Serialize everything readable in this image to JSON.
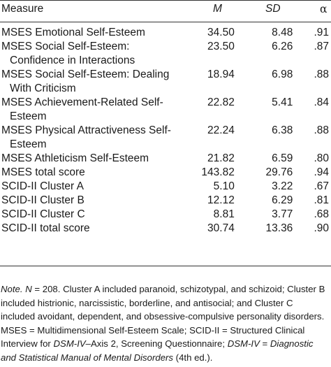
{
  "header": {
    "measure": "Measure",
    "m": "M",
    "sd": "SD",
    "alpha": "α"
  },
  "rows": [
    {
      "measure_line1": "MSES Emotional Self-Esteem",
      "measure_line2": "",
      "m": "34.50",
      "sd": "8.48",
      "alpha": ".91"
    },
    {
      "measure_line1": "MSES Social Self-Esteem:",
      "measure_line2": "Confidence in Interactions",
      "m": "23.50",
      "sd": "6.26",
      "alpha": ".87"
    },
    {
      "measure_line1": "MSES Social Self-Esteem: Dealing",
      "measure_line2": "With Criticism",
      "m": "18.94",
      "sd": "6.98",
      "alpha": ".88"
    },
    {
      "measure_line1": "MSES Achievement-Related Self-",
      "measure_line2": "Esteem",
      "m": "22.82",
      "sd": "5.41",
      "alpha": ".84"
    },
    {
      "measure_line1": "MSES Physical Attractiveness Self-",
      "measure_line2": "Esteem",
      "m": "22.24",
      "sd": "6.38",
      "alpha": ".88"
    },
    {
      "measure_line1": "MSES Athleticism Self-Esteem",
      "measure_line2": "",
      "m": "21.82",
      "sd": "6.59",
      "alpha": ".80"
    },
    {
      "measure_line1": "MSES total score",
      "measure_line2": "",
      "m": "143.82",
      "sd": "29.76",
      "alpha": ".94"
    },
    {
      "measure_line1": "SCID-II Cluster A",
      "measure_line2": "",
      "m": "5.10",
      "sd": "3.22",
      "alpha": ".67"
    },
    {
      "measure_line1": "SCID-II Cluster B",
      "measure_line2": "",
      "m": "12.12",
      "sd": "6.29",
      "alpha": ".81"
    },
    {
      "measure_line1": "SCID-II Cluster C",
      "measure_line2": "",
      "m": "8.81",
      "sd": "3.77",
      "alpha": ".68"
    },
    {
      "measure_line1": "SCID-II total score",
      "measure_line2": "",
      "m": "30.74",
      "sd": "13.36",
      "alpha": ".90"
    }
  ],
  "note": {
    "label": "Note.",
    "n_var": "N",
    "p1": " = 208. Cluster A included paranoid, schizotypal, and schizoid; Cluster B included histrionic, narcissistic, borderline, and antisocial; and Cluster C included avoidant, dependent, and obsessive-compulsive personality disorders. MSES = Multidimensional Self-Esteem Scale; SCID-II = Structured Clinical Interview for ",
    "dsm_iv": "DSM-IV",
    "p2": "–Axis 2, Screening Questionnaire; ",
    "dsm_iv_2": "DSM-IV",
    "p3": " = ",
    "manual": "Diagnostic and Statistical Manual of Mental Disorders",
    "p4": " (4th ed.)."
  }
}
